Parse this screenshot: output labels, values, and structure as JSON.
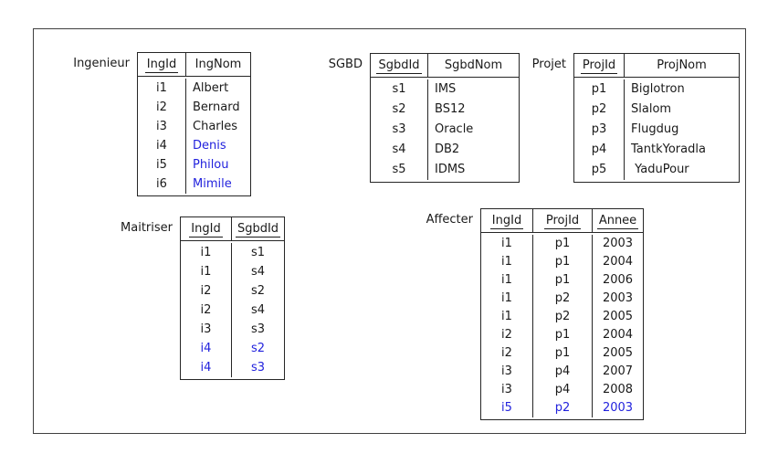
{
  "colors": {
    "text": "#1a1a1a",
    "highlight_blue": "#2222dd",
    "table_border": "#262626",
    "frame_border": "#404040",
    "background": "#ffffff"
  },
  "tables": [
    {
      "id": "ingenieur",
      "label": "Ingenieur",
      "columns": [
        {
          "label": "IngId",
          "underline": true
        },
        {
          "label": "IngNom",
          "underline": false
        }
      ],
      "rows": [
        {
          "cells": [
            "i1",
            "Albert"
          ]
        },
        {
          "cells": [
            "i2",
            "Bernard"
          ]
        },
        {
          "cells": [
            "i3",
            "Charles"
          ]
        },
        {
          "cells": [
            "i4",
            "Denis"
          ],
          "blue": [
            1
          ]
        },
        {
          "cells": [
            "i5",
            "Philou"
          ],
          "blue": [
            1
          ]
        },
        {
          "cells": [
            "i6",
            "Mimile"
          ],
          "blue": [
            1
          ]
        }
      ]
    },
    {
      "id": "sgbd",
      "label": "SGBD",
      "columns": [
        {
          "label": "SgbdId",
          "underline": true
        },
        {
          "label": "SgbdNom",
          "underline": false
        }
      ],
      "rows": [
        {
          "cells": [
            "s1",
            "IMS"
          ]
        },
        {
          "cells": [
            "s2",
            "BS12"
          ]
        },
        {
          "cells": [
            "s3",
            "Oracle"
          ]
        },
        {
          "cells": [
            "s4",
            "DB2"
          ]
        },
        {
          "cells": [
            "s5",
            "IDMS"
          ]
        }
      ]
    },
    {
      "id": "projet",
      "label": "Projet",
      "columns": [
        {
          "label": "ProjId",
          "underline": true
        },
        {
          "label": "ProjNom",
          "underline": false
        }
      ],
      "rows": [
        {
          "cells": [
            "p1",
            "Biglotron"
          ]
        },
        {
          "cells": [
            "p2",
            "Slalom"
          ]
        },
        {
          "cells": [
            "p3",
            "Flugdug"
          ]
        },
        {
          "cells": [
            "p4",
            "TantkYoradla"
          ]
        },
        {
          "cells": [
            "p5",
            " YaduPour"
          ]
        }
      ]
    },
    {
      "id": "maitriser",
      "label": "Maitriser",
      "columns": [
        {
          "label": "IngId",
          "underline": true
        },
        {
          "label": "SgbdId",
          "underline": true
        }
      ],
      "rows": [
        {
          "cells": [
            "i1",
            "s1"
          ]
        },
        {
          "cells": [
            "i1",
            "s4"
          ]
        },
        {
          "cells": [
            "i2",
            "s2"
          ]
        },
        {
          "cells": [
            "i2",
            "s4"
          ]
        },
        {
          "cells": [
            "i3",
            "s3"
          ]
        },
        {
          "cells": [
            "i4",
            "s2"
          ],
          "blue": [
            0,
            1
          ]
        },
        {
          "cells": [
            "i4",
            "s3"
          ],
          "blue": [
            0,
            1
          ]
        }
      ]
    },
    {
      "id": "affecter",
      "label": "Affecter",
      "columns": [
        {
          "label": "IngId",
          "underline": true
        },
        {
          "label": "ProjId",
          "underline": true
        },
        {
          "label": "Annee",
          "underline": true
        }
      ],
      "rows": [
        {
          "cells": [
            "i1",
            "p1",
            "2003"
          ]
        },
        {
          "cells": [
            "i1",
            "p1",
            "2004"
          ]
        },
        {
          "cells": [
            "i1",
            "p1",
            "2006"
          ]
        },
        {
          "cells": [
            "i1",
            "p2",
            "2003"
          ]
        },
        {
          "cells": [
            "i1",
            "p2",
            "2005"
          ]
        },
        {
          "cells": [
            "i2",
            "p1",
            "2004"
          ]
        },
        {
          "cells": [
            "i2",
            "p1",
            "2005"
          ]
        },
        {
          "cells": [
            "i3",
            "p4",
            "2007"
          ]
        },
        {
          "cells": [
            "i3",
            "p4",
            "2008"
          ]
        },
        {
          "cells": [
            "i5",
            "p2",
            "2003"
          ],
          "blue": [
            0,
            1,
            2
          ]
        }
      ]
    }
  ]
}
